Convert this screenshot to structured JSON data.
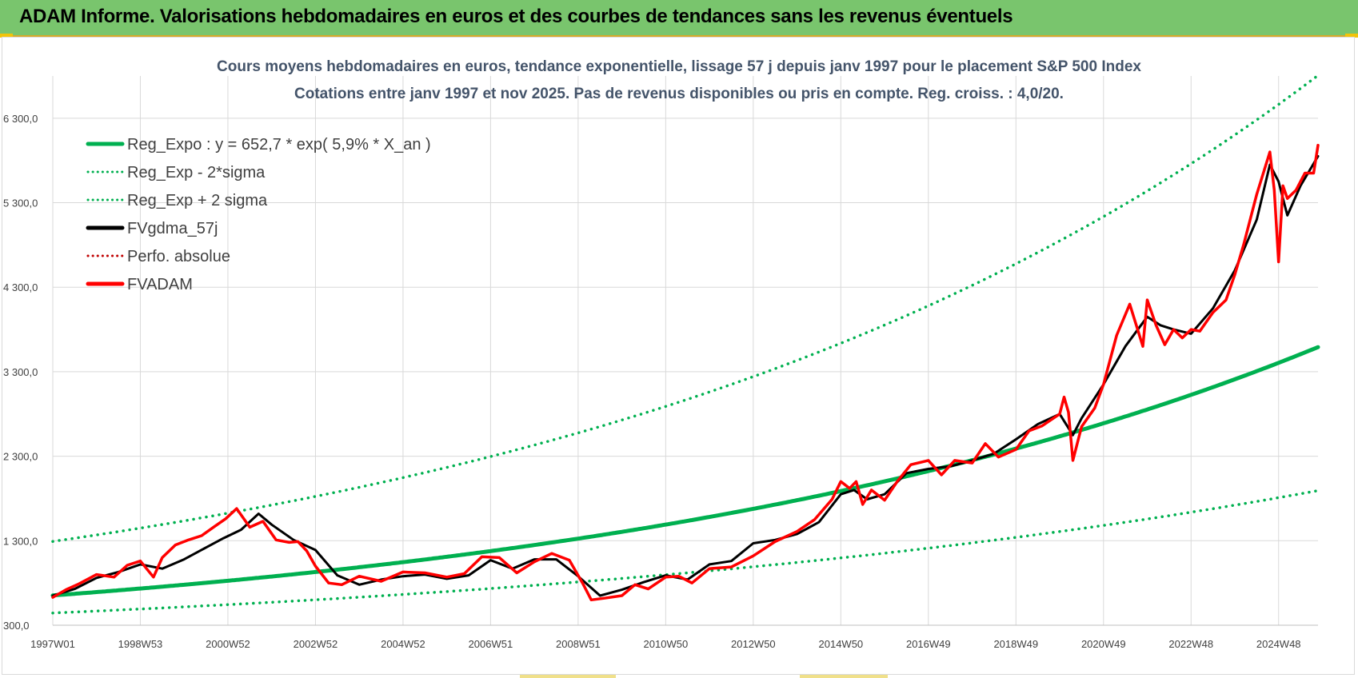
{
  "header": {
    "title": "ADAM Informe. Valorisations hebdomadaires en euros et des courbes de tendances sans les revenus éventuels"
  },
  "chart_data": {
    "type": "line",
    "title": "Cours moyens hebdomadaires en euros, tendance exponentielle, lissage 57 j depuis janv 1997 pour le placement S&P 500 Index",
    "subtitle": "Cotations entre janv 1997 et nov 2025. Pas de revenus disponibles ou pris en compte. Reg. croiss. : 4,0/20.",
    "xlabel": "",
    "ylabel": "",
    "xlim": [
      1997.0,
      2025.9
    ],
    "ylim": [
      300,
      6800
    ],
    "grid": true,
    "legend_position": "top-left",
    "x_ticks": [
      {
        "label": "1997W01",
        "x": 1997.0
      },
      {
        "label": "1998W53",
        "x": 1999.0
      },
      {
        "label": "2000W52",
        "x": 2001.0
      },
      {
        "label": "2002W52",
        "x": 2003.0
      },
      {
        "label": "2004W52",
        "x": 2005.0
      },
      {
        "label": "2006W51",
        "x": 2007.0
      },
      {
        "label": "2008W51",
        "x": 2009.0
      },
      {
        "label": "2010W50",
        "x": 2011.0
      },
      {
        "label": "2012W50",
        "x": 2013.0
      },
      {
        "label": "2014W50",
        "x": 2015.0
      },
      {
        "label": "2016W49",
        "x": 2017.0
      },
      {
        "label": "2018W49",
        "x": 2019.0
      },
      {
        "label": "2020W49",
        "x": 2021.0
      },
      {
        "label": "2022W48",
        "x": 2023.0
      },
      {
        "label": "2024W48",
        "x": 2025.0
      }
    ],
    "y_ticks": [
      {
        "label": "300,0",
        "y": 300
      },
      {
        "label": "1 300,0",
        "y": 1300
      },
      {
        "label": "2 300,0",
        "y": 2300
      },
      {
        "label": "3 300,0",
        "y": 3300
      },
      {
        "label": "4 300,0",
        "y": 4300
      },
      {
        "label": "5 300,0",
        "y": 5300
      },
      {
        "label": "6 300,0",
        "y": 6300
      }
    ],
    "series": [
      {
        "name": "Reg_Expo : y = 652,7 * exp( 5,9% *  X_an )",
        "color": "#00b050",
        "style": "solid",
        "regression": {
          "a": 652.7,
          "rate": 0.059,
          "x0": 1997.0
        }
      },
      {
        "name": "Reg_Exp - 2*sigma",
        "color": "#00b050",
        "style": "dotted",
        "regression": {
          "a": 445,
          "rate": 0.0501,
          "x0": 1997.0
        }
      },
      {
        "name": "Reg_Exp + 2 sigma",
        "color": "#00b050",
        "style": "dotted",
        "regression": {
          "a": 1292,
          "rate": 0.0575,
          "x0": 1997.0
        }
      },
      {
        "name": "FVgdma_57j",
        "color": "#000000",
        "style": "solid",
        "x": [
          1997.0,
          1997.5,
          1998.0,
          1998.5,
          1999.0,
          1999.5,
          2000.0,
          2000.5,
          2000.9,
          2001.3,
          2001.7,
          2002.0,
          2002.5,
          2003.0,
          2003.5,
          2004.0,
          2004.5,
          2005.0,
          2005.5,
          2006.0,
          2006.5,
          2007.0,
          2007.5,
          2008.0,
          2008.5,
          2009.0,
          2009.5,
          2010.0,
          2010.5,
          2011.0,
          2011.5,
          2012.0,
          2012.5,
          2013.0,
          2013.5,
          2014.0,
          2014.5,
          2015.0,
          2015.3,
          2015.6,
          2016.0,
          2016.5,
          2017.0,
          2017.5,
          2018.0,
          2018.5,
          2019.0,
          2019.5,
          2020.0,
          2020.3,
          2020.5,
          2021.0,
          2021.5,
          2022.0,
          2022.3,
          2022.6,
          2023.0,
          2023.5,
          2024.0,
          2024.5,
          2024.8,
          2025.0,
          2025.2,
          2025.5,
          2025.9
        ],
        "values": [
          650,
          730,
          860,
          930,
          1020,
          970,
          1080,
          1220,
          1330,
          1430,
          1620,
          1490,
          1310,
          1190,
          890,
          780,
          840,
          880,
          900,
          850,
          890,
          1070,
          970,
          1080,
          1080,
          880,
          650,
          720,
          810,
          890,
          840,
          1020,
          1060,
          1270,
          1310,
          1380,
          1520,
          1850,
          1900,
          1790,
          1850,
          2100,
          2150,
          2180,
          2250,
          2330,
          2500,
          2680,
          2800,
          2550,
          2750,
          3150,
          3600,
          3950,
          3850,
          3800,
          3750,
          4050,
          4500,
          5100,
          5750,
          5550,
          5150,
          5500,
          5850
        ]
      },
      {
        "name": "Perfo. absolue",
        "color": "#c00000",
        "style": "dotted",
        "values": []
      },
      {
        "name": "FVADAM",
        "color": "#ff0000",
        "style": "solid",
        "x": [
          1997.0,
          1997.3,
          1997.6,
          1998.0,
          1998.4,
          1998.7,
          1999.0,
          1999.3,
          1999.5,
          1999.8,
          2000.1,
          2000.4,
          2000.7,
          2000.95,
          2001.2,
          2001.5,
          2001.8,
          2002.1,
          2002.4,
          2002.6,
          2002.8,
          2003.0,
          2003.3,
          2003.6,
          2004.0,
          2004.5,
          2005.0,
          2005.5,
          2006.0,
          2006.4,
          2006.8,
          2007.2,
          2007.6,
          2008.0,
          2008.4,
          2008.8,
          2009.1,
          2009.3,
          2009.6,
          2010.0,
          2010.3,
          2010.6,
          2011.0,
          2011.3,
          2011.6,
          2012.0,
          2012.5,
          2013.0,
          2013.5,
          2014.0,
          2014.4,
          2014.8,
          2015.0,
          2015.2,
          2015.35,
          2015.5,
          2015.7,
          2016.0,
          2016.3,
          2016.6,
          2017.0,
          2017.3,
          2017.6,
          2018.0,
          2018.3,
          2018.6,
          2019.0,
          2019.3,
          2019.6,
          2020.0,
          2020.1,
          2020.2,
          2020.3,
          2020.5,
          2020.8,
          2021.0,
          2021.3,
          2021.6,
          2021.9,
          2022.0,
          2022.2,
          2022.4,
          2022.6,
          2022.8,
          2023.0,
          2023.2,
          2023.5,
          2023.8,
          2024.0,
          2024.2,
          2024.5,
          2024.8,
          2024.9,
          2025.0,
          2025.1,
          2025.2,
          2025.4,
          2025.6,
          2025.8,
          2025.9
        ],
        "values": [
          630,
          720,
          790,
          900,
          870,
          1010,
          1060,
          870,
          1100,
          1250,
          1310,
          1360,
          1470,
          1560,
          1680,
          1460,
          1530,
          1310,
          1280,
          1290,
          1180,
          1000,
          800,
          780,
          880,
          820,
          930,
          920,
          870,
          910,
          1110,
          1100,
          920,
          1050,
          1150,
          1070,
          800,
          600,
          620,
          650,
          780,
          730,
          870,
          880,
          800,
          970,
          990,
          1120,
          1290,
          1410,
          1550,
          1790,
          2000,
          1920,
          2000,
          1730,
          1900,
          1780,
          2010,
          2200,
          2250,
          2080,
          2250,
          2220,
          2450,
          2290,
          2380,
          2600,
          2660,
          2800,
          3000,
          2820,
          2250,
          2650,
          2870,
          3150,
          3730,
          4100,
          3600,
          4150,
          3850,
          3620,
          3800,
          3700,
          3800,
          3780,
          4000,
          4150,
          4450,
          4800,
          5400,
          5900,
          5450,
          4600,
          5500,
          5350,
          5450,
          5650,
          5650,
          5980
        ]
      }
    ]
  }
}
